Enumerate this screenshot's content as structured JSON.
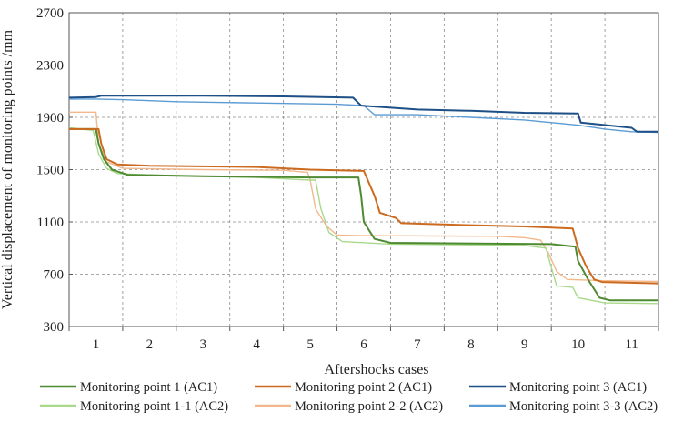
{
  "chart_data": {
    "type": "line",
    "xlabel": "Aftershocks cases",
    "ylabel": "Vertical displacement of  monitoring points /mm",
    "ylim": [
      300,
      2700
    ],
    "yticks": [
      300,
      700,
      1100,
      1500,
      1900,
      2300,
      2700
    ],
    "xlim": [
      0.5,
      11.5
    ],
    "x_categories": [
      "1",
      "2",
      "3",
      "4",
      "5",
      "6",
      "7",
      "8",
      "9",
      "10",
      "11"
    ],
    "grid": true,
    "legend_position": "bottom",
    "series": [
      {
        "name": "Monitoring point 1 (AC1)",
        "color": "#4e8a31",
        "points": [
          [
            0.5,
            1810
          ],
          [
            1.0,
            1810
          ],
          [
            1.05,
            1700
          ],
          [
            1.15,
            1580
          ],
          [
            1.3,
            1500
          ],
          [
            1.6,
            1460
          ],
          [
            3.0,
            1450
          ],
          [
            5.0,
            1440
          ],
          [
            5.9,
            1440
          ],
          [
            5.95,
            1300
          ],
          [
            6.0,
            1100
          ],
          [
            6.2,
            970
          ],
          [
            6.5,
            940
          ],
          [
            9.5,
            930
          ],
          [
            9.95,
            910
          ],
          [
            10.0,
            800
          ],
          [
            10.2,
            650
          ],
          [
            10.4,
            520
          ],
          [
            10.6,
            500
          ],
          [
            11.5,
            500
          ]
        ]
      },
      {
        "name": "Monitoring point 2 (AC1)",
        "color": "#cc6b1f",
        "points": [
          [
            0.5,
            1810
          ],
          [
            1.05,
            1810
          ],
          [
            1.1,
            1700
          ],
          [
            1.2,
            1580
          ],
          [
            1.4,
            1540
          ],
          [
            2.0,
            1530
          ],
          [
            4.0,
            1520
          ],
          [
            5.0,
            1500
          ],
          [
            6.0,
            1490
          ],
          [
            6.2,
            1300
          ],
          [
            6.3,
            1170
          ],
          [
            6.6,
            1130
          ],
          [
            6.7,
            1090
          ],
          [
            8.0,
            1075
          ],
          [
            9.0,
            1065
          ],
          [
            9.9,
            1050
          ],
          [
            10.0,
            900
          ],
          [
            10.15,
            760
          ],
          [
            10.3,
            660
          ],
          [
            10.45,
            640
          ],
          [
            11.5,
            630
          ]
        ]
      },
      {
        "name": "Monitoring point 3 (AC1)",
        "color": "#1e4f86",
        "points": [
          [
            0.5,
            2050
          ],
          [
            1.0,
            2055
          ],
          [
            1.1,
            2065
          ],
          [
            1.5,
            2065
          ],
          [
            3.0,
            2065
          ],
          [
            4.5,
            2060
          ],
          [
            5.8,
            2050
          ],
          [
            5.95,
            1990
          ],
          [
            7.0,
            1960
          ],
          [
            8.0,
            1950
          ],
          [
            9.0,
            1935
          ],
          [
            10.0,
            1930
          ],
          [
            10.05,
            1860
          ],
          [
            11.0,
            1820
          ],
          [
            11.1,
            1790
          ],
          [
            11.5,
            1790
          ]
        ]
      },
      {
        "name": "Monitoring point 1-1 (AC2)",
        "color": "#a9d98b",
        "points": [
          [
            0.5,
            1820
          ],
          [
            0.95,
            1800
          ],
          [
            1.05,
            1620
          ],
          [
            1.2,
            1510
          ],
          [
            1.4,
            1470
          ],
          [
            2.0,
            1460
          ],
          [
            4.0,
            1440
          ],
          [
            5.0,
            1420
          ],
          [
            5.1,
            1420
          ],
          [
            5.2,
            1200
          ],
          [
            5.35,
            1020
          ],
          [
            5.6,
            950
          ],
          [
            6.5,
            930
          ],
          [
            9.0,
            920
          ],
          [
            9.4,
            900
          ],
          [
            9.5,
            750
          ],
          [
            9.6,
            610
          ],
          [
            9.9,
            600
          ],
          [
            10.0,
            520
          ],
          [
            10.5,
            480
          ],
          [
            11.5,
            475
          ]
        ]
      },
      {
        "name": "Monitoring point 2-2 (AC2)",
        "color": "#f2b88c",
        "points": [
          [
            0.5,
            1940
          ],
          [
            1.0,
            1940
          ],
          [
            1.05,
            1700
          ],
          [
            1.2,
            1560
          ],
          [
            1.5,
            1510
          ],
          [
            3.0,
            1500
          ],
          [
            4.5,
            1495
          ],
          [
            4.95,
            1480
          ],
          [
            5.0,
            1420
          ],
          [
            5.1,
            1200
          ],
          [
            5.3,
            1070
          ],
          [
            5.5,
            1000
          ],
          [
            6.0,
            995
          ],
          [
            8.5,
            990
          ],
          [
            9.0,
            980
          ],
          [
            9.3,
            960
          ],
          [
            9.45,
            860
          ],
          [
            9.6,
            720
          ],
          [
            9.8,
            660
          ],
          [
            10.5,
            650
          ],
          [
            11.5,
            645
          ]
        ]
      },
      {
        "name": "Monitoring point 3-3 (AC2)",
        "color": "#5a9bd4",
        "points": [
          [
            0.5,
            2040
          ],
          [
            1.0,
            2040
          ],
          [
            1.5,
            2035
          ],
          [
            2.5,
            2020
          ],
          [
            4.0,
            2010
          ],
          [
            5.5,
            2000
          ],
          [
            6.0,
            1990
          ],
          [
            6.2,
            1920
          ],
          [
            7.0,
            1920
          ],
          [
            8.0,
            1900
          ],
          [
            9.0,
            1880
          ],
          [
            10.0,
            1840
          ],
          [
            10.5,
            1810
          ],
          [
            11.0,
            1790
          ],
          [
            11.5,
            1785
          ]
        ]
      }
    ]
  }
}
